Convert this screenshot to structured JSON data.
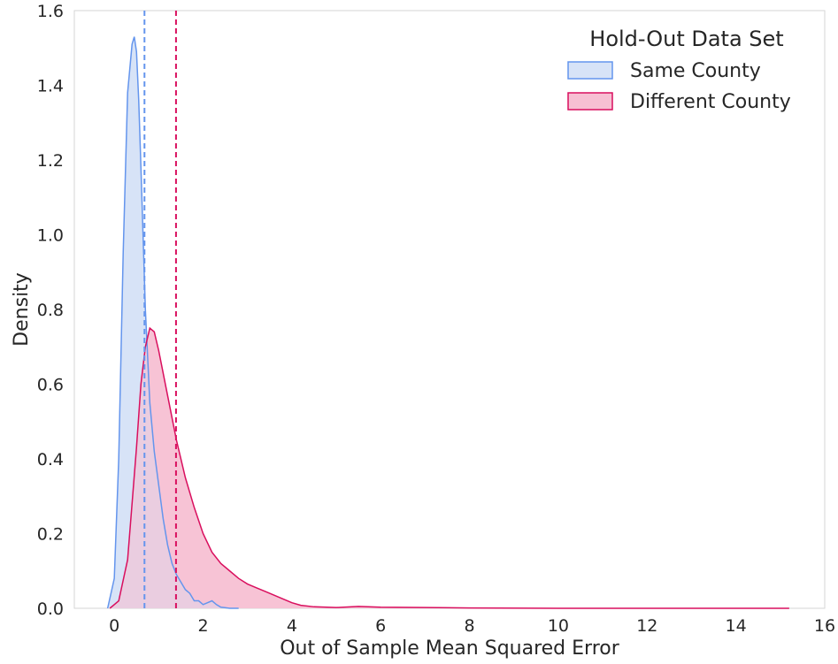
{
  "chart_data": {
    "type": "area",
    "title": "",
    "xlabel": "Out of Sample Mean Squared Error",
    "ylabel": "Density",
    "xlim": [
      -0.9,
      16.0
    ],
    "ylim": [
      0.0,
      1.6
    ],
    "xticks": [
      "0",
      "2",
      "4",
      "6",
      "8",
      "10",
      "12",
      "14",
      "16"
    ],
    "yticks": [
      "0.0",
      "0.2",
      "0.4",
      "0.6",
      "0.8",
      "1.0",
      "1.2",
      "1.4",
      "1.6"
    ],
    "grid": false,
    "legend": {
      "title": "Hold-Out Data Set",
      "position": "top-right"
    },
    "series": [
      {
        "name": "Same County",
        "color": "#6495ed",
        "fill": "#d7e3f7",
        "mean": 0.68,
        "x": [
          -0.15,
          0.0,
          0.1,
          0.2,
          0.3,
          0.4,
          0.45,
          0.5,
          0.55,
          0.6,
          0.7,
          0.8,
          0.9,
          1.0,
          1.1,
          1.2,
          1.3,
          1.4,
          1.5,
          1.6,
          1.7,
          1.8,
          1.9,
          2.0,
          2.1,
          2.2,
          2.3,
          2.4,
          2.6,
          2.8
        ],
        "y": [
          0.0,
          0.08,
          0.4,
          0.95,
          1.38,
          1.51,
          1.53,
          1.49,
          1.36,
          1.18,
          0.8,
          0.55,
          0.42,
          0.33,
          0.24,
          0.17,
          0.12,
          0.09,
          0.07,
          0.05,
          0.04,
          0.02,
          0.02,
          0.01,
          0.015,
          0.02,
          0.01,
          0.003,
          0.0,
          0.0
        ]
      },
      {
        "name": "Different County",
        "color": "#d90f5e",
        "fill": "#f7c0d3",
        "mean": 1.39,
        "x": [
          -0.1,
          0.1,
          0.3,
          0.5,
          0.6,
          0.7,
          0.8,
          0.9,
          1.0,
          1.2,
          1.4,
          1.6,
          1.8,
          2.0,
          2.2,
          2.4,
          2.6,
          2.8,
          3.0,
          3.2,
          3.4,
          3.6,
          3.8,
          4.0,
          4.2,
          4.5,
          5.0,
          5.5,
          6.0,
          7.0,
          8.0,
          10.0,
          12.0,
          14.0,
          15.2
        ],
        "y": [
          0.0,
          0.02,
          0.13,
          0.43,
          0.6,
          0.7,
          0.75,
          0.74,
          0.69,
          0.57,
          0.45,
          0.35,
          0.27,
          0.2,
          0.15,
          0.12,
          0.1,
          0.08,
          0.065,
          0.055,
          0.045,
          0.035,
          0.025,
          0.015,
          0.008,
          0.004,
          0.002,
          0.005,
          0.003,
          0.002,
          0.001,
          0.0,
          0.0,
          0.0,
          0.0
        ]
      }
    ]
  }
}
